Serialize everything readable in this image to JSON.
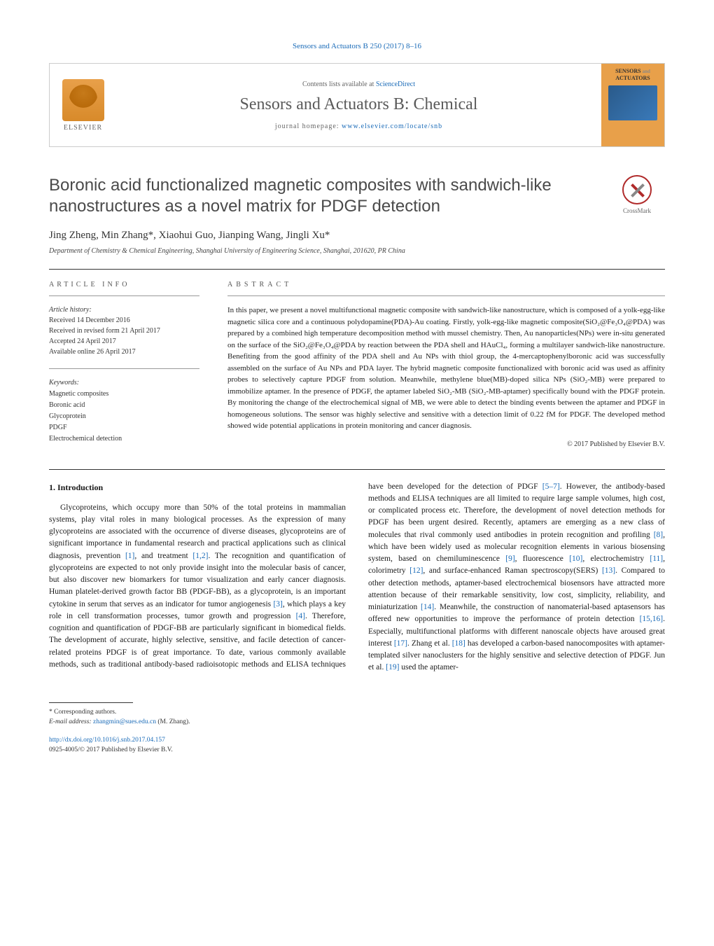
{
  "journal_ref": {
    "text": "Sensors and Actuators B 250 (2017) 8–16",
    "link_text": "Sensors and Actuators B 250 (2017) 8–16"
  },
  "header": {
    "contents_prefix": "Contents lists available at ",
    "contents_link": "ScienceDirect",
    "journal_title": "Sensors and Actuators B: Chemical",
    "homepage_prefix": "journal homepage: ",
    "homepage_link": "www.elsevier.com/locate/snb",
    "publisher_name": "ELSEVIER",
    "cover_label_top": "SENSORS",
    "cover_label_and": "and",
    "cover_label_bottom": "ACTUATORS"
  },
  "article": {
    "title": "Boronic acid functionalized magnetic composites with sandwich-like nanostructures as a novel matrix for PDGF detection",
    "crossmark_label": "CrossMark",
    "authors_html": "Jing Zheng, Min Zhang*, Xiaohui Guo, Jianping Wang, Jingli Xu*",
    "affiliation": "Department of Chemistry & Chemical Engineering, Shanghai University of Engineering Science, Shanghai, 201620, PR China"
  },
  "article_info": {
    "label": "ARTICLE INFO",
    "history_label": "Article history:",
    "received": "Received 14 December 2016",
    "revised": "Received in revised form 21 April 2017",
    "accepted": "Accepted 24 April 2017",
    "online": "Available online 26 April 2017",
    "keywords_label": "Keywords:",
    "keywords": [
      "Magnetic composites",
      "Boronic acid",
      "Glycoprotein",
      "PDGF",
      "Electrochemical detection"
    ]
  },
  "abstract": {
    "label": "ABSTRACT",
    "text": "In this paper, we present a novel multifunctional magnetic composite with sandwich-like nanostructure, which is composed of a yolk-egg-like magnetic silica core and a continuous polydopamine(PDA)-Au coating. Firstly, yolk-egg-like magnetic composite(SiO₂@Fe₃O₄@PDA) was prepared by a combined high temperature decomposition method with mussel chemistry. Then, Au nanoparticles(NPs) were in-situ generated on the surface of the SiO₂@Fe₃O₄@PDA by reaction between the PDA shell and HAuCl₄, forming a multilayer sandwich-like nanostructure. Benefiting from the good affinity of the PDA shell and Au NPs with thiol group, the 4-mercaptophenylboronic acid was successfully assembled on the surface of Au NPs and PDA layer. The hybrid magnetic composite functionalized with boronic acid was used as affinity probes to selectively capture PDGF from solution. Meanwhile, methylene blue(MB)-doped silica NPs (SiO₂-MB) were prepared to immobilize aptamer. In the presence of PDGF, the aptamer labeled SiO₂-MB (SiO₂-MB-aptamer) specifically bound with the PDGF protein. By monitoring the change of the electrochemical signal of MB, we were able to detect the binding events between the aptamer and PDGF in homogeneous solutions. The sensor was highly selective and sensitive with a detection limit of 0.22 fM for PDGF. The developed method showed wide potential applications in protein monitoring and cancer diagnosis.",
    "copyright": "© 2017 Published by Elsevier B.V."
  },
  "body": {
    "section_heading": "1. Introduction",
    "col1": "Glycoproteins, which occupy more than 50% of the total proteins in mammalian systems, play vital roles in many biological processes. As the expression of many glycoproteins are associated with the occurrence of diverse diseases, glycoproteins are of significant importance in fundamental research and practical applications such as clinical diagnosis, prevention [1], and treatment [1,2]. The recognition and quantification of glycoproteins are expected to not only provide insight into the molecular basis of cancer, but also discover new biomarkers for tumor visualization and early cancer diagnosis. Human platelet-derived growth factor BB (PDGF-BB), as a glycoprotein, is an important cytokine in serum that serves as an indicator for tumor angiogenesis [3], which plays a key role in cell transformation processes, tumor growth and progression [4]. Therefore, cognition and quantification of PDGF-BB are particularly significant in biomedical fields. The development of accurate, highly selective, sensitive, and facile detection of cancer-related proteins PDGF is",
    "col2": "of great importance. To date, various commonly available methods, such as traditional antibody-based radioisotopic methods and ELISA techniques have been developed for the detection of PDGF [5–7]. However, the antibody-based methods and ELISA techniques are all limited to require large sample volumes, high cost, or complicated process etc. Therefore, the development of novel detection methods for PDGF has been urgent desired. Recently, aptamers are emerging as a new class of molecules that rival commonly used antibodies in protein recognition and profiling [8], which have been widely used as molecular recognition elements in various biosensing system, based on chemiluminescence [9], fluorescence [10], electrochemistry [11], colorimetry [12], and surface-enhanced Raman spectroscopy(SERS) [13]. Compared to other detection methods, aptamer-based electrochemical biosensors have attracted more attention because of their remarkable sensitivity, low cost, simplicity, reliability, and miniaturization [14]. Meanwhile, the construction of nanomaterial-based aptasensors has offered new opportunities to improve the performance of protein detection [15,16]. Especially, multifunctional platforms with different nanoscale objects have aroused great interest [17]. Zhang et al. [18] has developed a carbon-based nanocomposites with aptamer-templated silver nanoclusters for the highly sensitive and selective detection of PDGF. Jun et al. [19] used the aptamer-",
    "refs": [
      "[1]",
      "[1,2]",
      "[3]",
      "[4]",
      "[5–7]",
      "[8]",
      "[9]",
      "[10]",
      "[11]",
      "[12]",
      "[13]",
      "[14]",
      "[15,16]",
      "[17]",
      "[18]",
      "[19]"
    ]
  },
  "footer": {
    "corresponding": "* Corresponding authors.",
    "email_label": "E-mail address: ",
    "email": "zhangmin@sues.edu.cn",
    "email_suffix": " (M. Zhang).",
    "doi_link": "http://dx.doi.org/10.1016/j.snb.2017.04.157",
    "issn_line": "0925-4005/© 2017 Published by Elsevier B.V."
  },
  "colors": {
    "link": "#1a6bb8",
    "text": "#333333",
    "heading": "#4a4a4a",
    "elsevier_orange": "#e8a04a",
    "crossmark_red": "#b02a2a"
  }
}
